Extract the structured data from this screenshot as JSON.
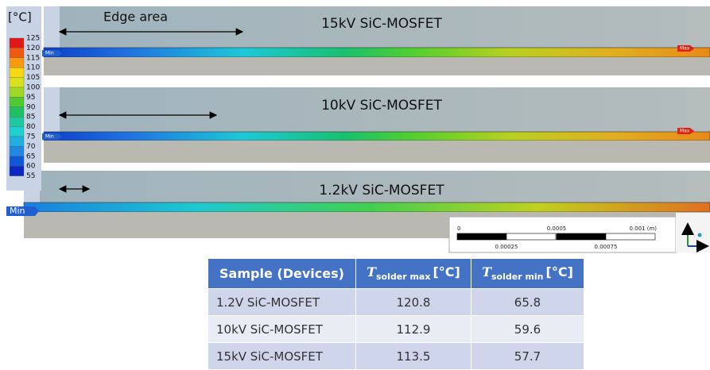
{
  "legend": {
    "unit": "[°C]",
    "levels": [
      125,
      120,
      115,
      110,
      105,
      100,
      95,
      90,
      85,
      80,
      75,
      70,
      65,
      60,
      55
    ]
  },
  "edge_label": "Edge area",
  "panels": [
    {
      "title": "15kV SiC-MOSFET",
      "min": "Min",
      "max": "Max"
    },
    {
      "title": "10kV SiC-MOSFET",
      "min": "Min",
      "max": "Max"
    },
    {
      "title": "1.2kV SiC-MOSFET",
      "min": "Min"
    }
  ],
  "scale_bar": {
    "top": [
      "0",
      "0.0005",
      "0.001 (m)"
    ],
    "bottom": [
      "0.00025",
      "0.00075"
    ]
  },
  "table": {
    "header": [
      {
        "text": "Sample (Devices)"
      },
      {
        "symbol": "T",
        "subscript": "solder max",
        "unit": "[°C]"
      },
      {
        "symbol": "T",
        "subscript": "solder min",
        "unit": "[°C]"
      }
    ],
    "rows": [
      [
        "1.2V SiC-MOSFET",
        120.8,
        65.8
      ],
      [
        "10kV SiC-MOSFET",
        112.9,
        59.6
      ],
      [
        "15kV SiC-MOSFET",
        113.5,
        57.7
      ]
    ]
  }
}
